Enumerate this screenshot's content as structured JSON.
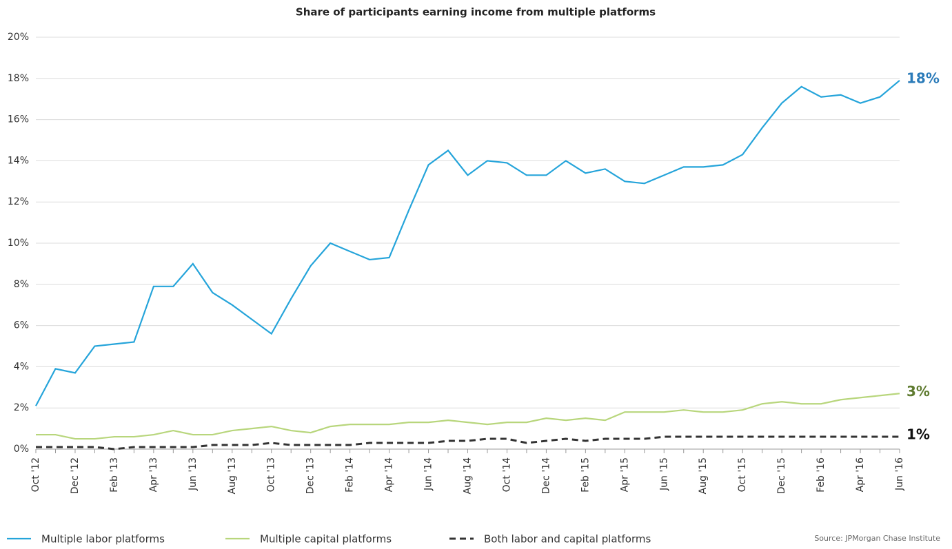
{
  "chart_data": {
    "type": "line",
    "title": "Share of participants earning income from multiple platforms",
    "source": "Source:  JPMorgan Chase Institute",
    "categories": [
      "Oct '12",
      null,
      "Dec '12",
      null,
      "Feb '13",
      null,
      "Apr '13",
      null,
      "Jun '13",
      null,
      "Aug '13",
      null,
      "Oct '13",
      null,
      "Dec '13",
      null,
      "Feb '14",
      null,
      "Apr '14",
      null,
      "Jun '14",
      null,
      "Aug '14",
      null,
      "Oct '14",
      null,
      "Dec '14",
      null,
      "Feb '15",
      null,
      "Apr '15",
      null,
      "Jun '15",
      null,
      "Aug '15",
      null,
      "Oct '15",
      null,
      "Dec '15",
      null,
      "Feb '16",
      null,
      "Apr '16",
      null,
      "Jun '16"
    ],
    "series": [
      {
        "name": "Multiple labor platforms",
        "color": "#25a4da",
        "dashed": false,
        "end_label": "18%",
        "end_label_color": "#2b7bb9",
        "values": [
          2.1,
          3.9,
          3.7,
          5.0,
          5.1,
          5.2,
          7.9,
          7.9,
          9.0,
          7.6,
          7.0,
          6.3,
          5.6,
          7.3,
          8.9,
          10.0,
          9.6,
          9.2,
          9.3,
          11.6,
          13.8,
          14.5,
          13.3,
          14.0,
          13.9,
          13.3,
          13.3,
          14.0,
          13.4,
          13.6,
          13.0,
          12.9,
          13.3,
          13.7,
          13.7,
          13.8,
          14.3,
          15.6,
          16.8,
          17.6,
          17.1,
          17.2,
          16.8,
          17.1,
          17.9
        ]
      },
      {
        "name": "Multiple capital platforms",
        "color": "#b8d67c",
        "dashed": false,
        "end_label": "3%",
        "end_label_color": "#5f7b30",
        "values": [
          0.7,
          0.7,
          0.5,
          0.5,
          0.6,
          0.6,
          0.7,
          0.9,
          0.7,
          0.7,
          0.9,
          1.0,
          1.1,
          0.9,
          0.8,
          1.1,
          1.2,
          1.2,
          1.2,
          1.3,
          1.3,
          1.4,
          1.3,
          1.2,
          1.3,
          1.3,
          1.5,
          1.4,
          1.5,
          1.4,
          1.8,
          1.8,
          1.8,
          1.9,
          1.8,
          1.8,
          1.9,
          2.2,
          2.3,
          2.2,
          2.2,
          2.4,
          2.5,
          2.6,
          2.7
        ]
      },
      {
        "name": "Both labor and capital platforms",
        "color": "#333333",
        "dashed": true,
        "end_label": "1%",
        "end_label_color": "#111111",
        "values": [
          0.1,
          0.1,
          0.1,
          0.1,
          0.0,
          0.1,
          0.1,
          0.1,
          0.1,
          0.2,
          0.2,
          0.2,
          0.3,
          0.2,
          0.2,
          0.2,
          0.2,
          0.3,
          0.3,
          0.3,
          0.3,
          0.4,
          0.4,
          0.5,
          0.5,
          0.3,
          0.4,
          0.5,
          0.4,
          0.5,
          0.5,
          0.5,
          0.6,
          0.6,
          0.6,
          0.6,
          0.6,
          0.6,
          0.6,
          0.6,
          0.6,
          0.6,
          0.6,
          0.6,
          0.6
        ]
      }
    ],
    "ylim": [
      0,
      20
    ],
    "yticks": [
      {
        "value": 0,
        "label": "0%"
      },
      {
        "value": 2,
        "label": "2%"
      },
      {
        "value": 4,
        "label": "4%"
      },
      {
        "value": 6,
        "label": "6%"
      },
      {
        "value": 8,
        "label": "8%"
      },
      {
        "value": 10,
        "label": "10%"
      },
      {
        "value": 12,
        "label": "12%"
      },
      {
        "value": 14,
        "label": "14%"
      },
      {
        "value": 16,
        "label": "16%"
      },
      {
        "value": 18,
        "label": "18%"
      },
      {
        "value": 20,
        "label": "20%"
      }
    ],
    "grid": true
  }
}
